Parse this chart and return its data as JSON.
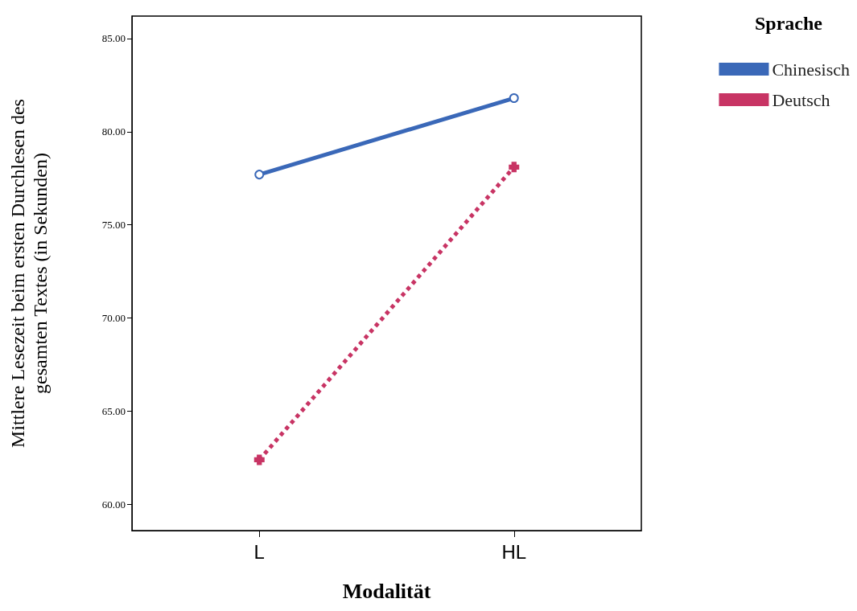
{
  "chart_data": {
    "type": "line",
    "xlabel": "Modalität",
    "ylabel": "Mittlere Lesezeit beim ersten Durchlesen des\ngesamten Textes (in Sekunden)",
    "legend_title": "Sprache",
    "legend": "top right",
    "categories": [
      "L",
      "HL"
    ],
    "ylim": [
      58.6,
      86.2
    ],
    "yticks": [
      {
        "value": 60,
        "label": "60.00"
      },
      {
        "value": 65,
        "label": "65.00"
      },
      {
        "value": 70,
        "label": "70.00"
      },
      {
        "value": 75,
        "label": "75.00"
      },
      {
        "value": 80,
        "label": "80.00"
      },
      {
        "value": 85,
        "label": "85.00"
      }
    ],
    "grid": false,
    "series": [
      {
        "name": "Chinesisch",
        "color": "#3a68b8",
        "values": [
          77.7,
          81.8
        ],
        "marker": "circle",
        "line_style": "solid"
      },
      {
        "name": "Deutsch",
        "color": "#c83464",
        "values": [
          62.4,
          78.1
        ],
        "marker": "cross",
        "line_style": "dotted"
      }
    ]
  }
}
